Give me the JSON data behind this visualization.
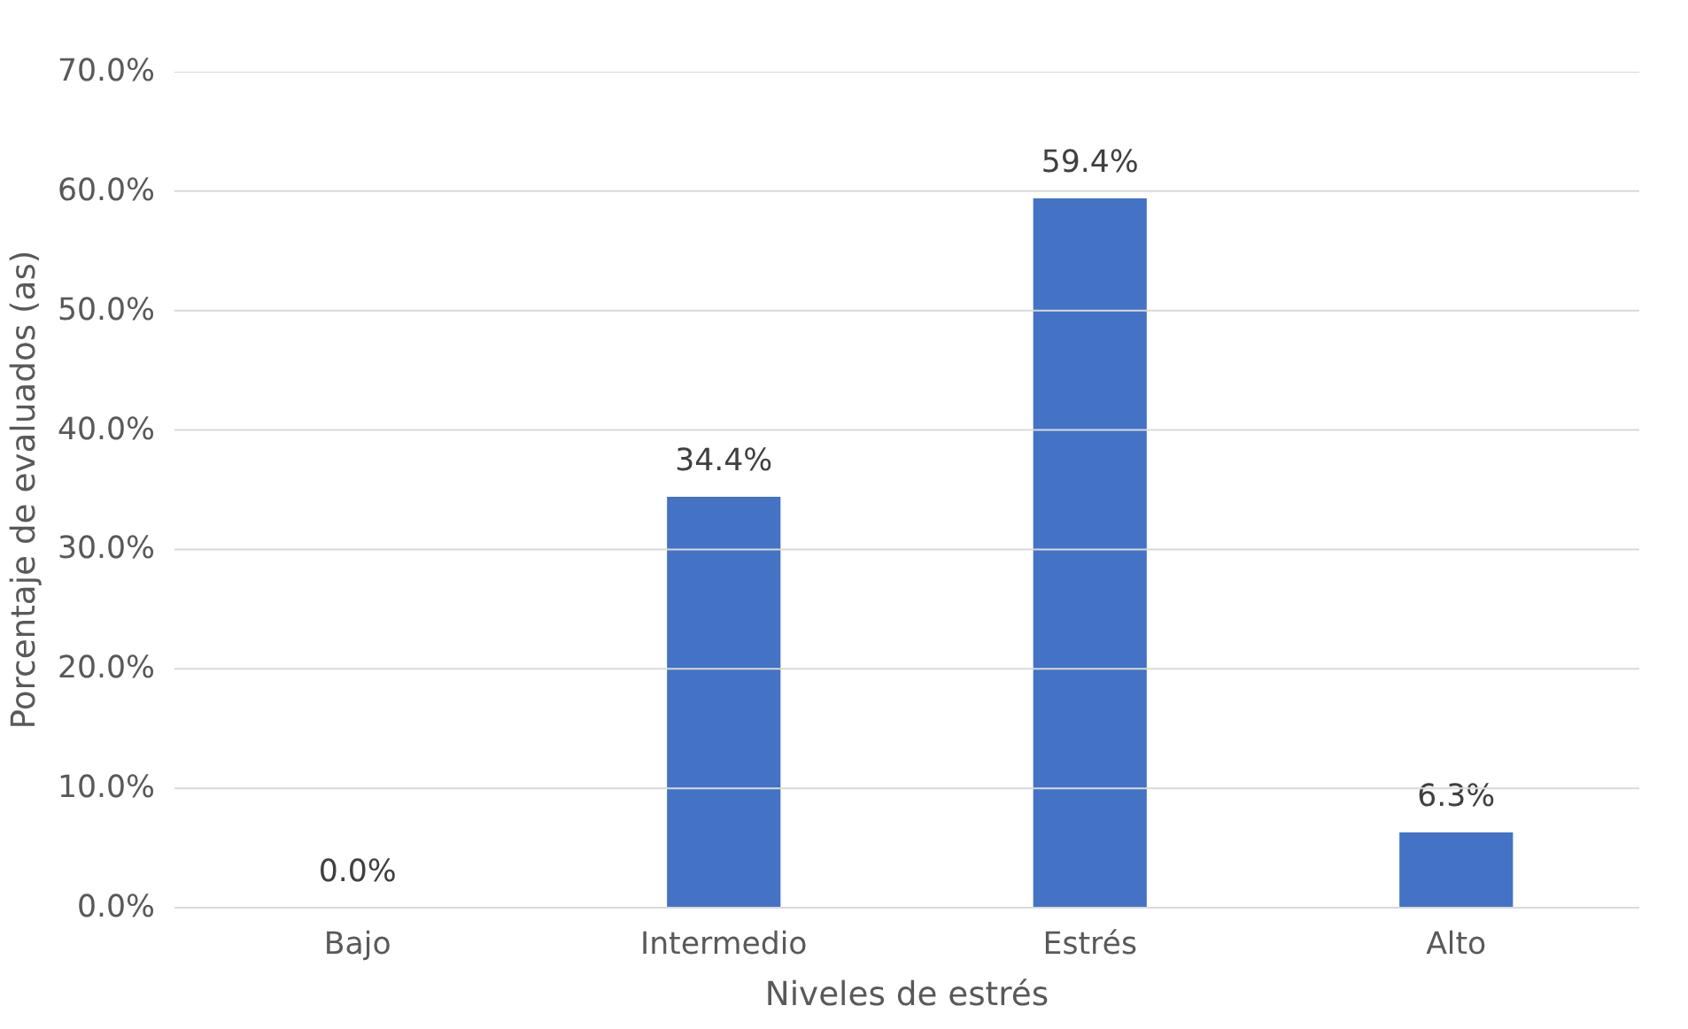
{
  "chart_data": {
    "type": "bar",
    "xlabel": "Niveles de estrés",
    "ylabel": "Porcentaje de evaluados (as)",
    "categories": [
      "Bajo",
      "Intermedio",
      "Estrés",
      "Alto"
    ],
    "values": [
      0.0,
      34.4,
      59.4,
      6.3
    ],
    "value_labels": [
      "0.0%",
      "34.4%",
      "59.4%",
      "6.3%"
    ],
    "color": "#4472c4",
    "ylim": [
      0,
      70
    ],
    "yticks": [
      {
        "value": 0,
        "label": "0.0%"
      },
      {
        "value": 10,
        "label": "10.0%"
      },
      {
        "value": 20,
        "label": "20.0%"
      },
      {
        "value": 30,
        "label": "30.0%"
      },
      {
        "value": 40,
        "label": "40.0%"
      },
      {
        "value": 50,
        "label": "50.0%"
      },
      {
        "value": 60,
        "label": "60.0%"
      },
      {
        "value": 70,
        "label": "70.0%"
      }
    ],
    "grid": "y"
  }
}
